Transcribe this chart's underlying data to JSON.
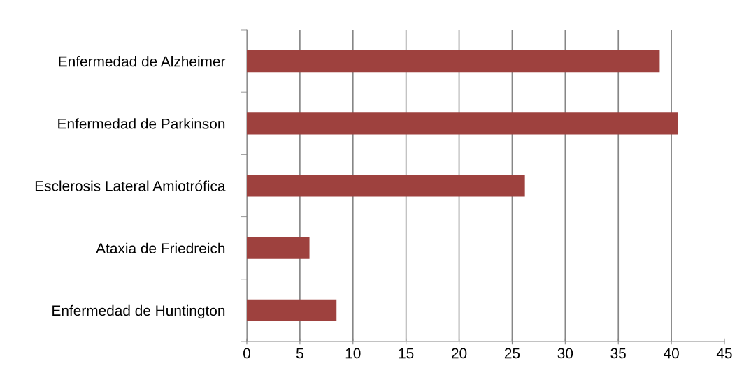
{
  "chart_data": {
    "type": "bar",
    "orientation": "horizontal",
    "categories": [
      "Enfermedad de Alzheimer",
      "Enfermedad de Parkinson",
      "Esclerosis Lateral Amiotrófica",
      "Ataxia de Friedreich",
      "Enfermedad de Huntington"
    ],
    "values": [
      38.9,
      40.65,
      26.2,
      5.9,
      8.45
    ],
    "color": "#9e413e",
    "xlim": [
      0,
      45
    ],
    "xticks": [
      0,
      5,
      10,
      15,
      20,
      25,
      30,
      35,
      40,
      45
    ],
    "grid": "x",
    "legend": false
  }
}
